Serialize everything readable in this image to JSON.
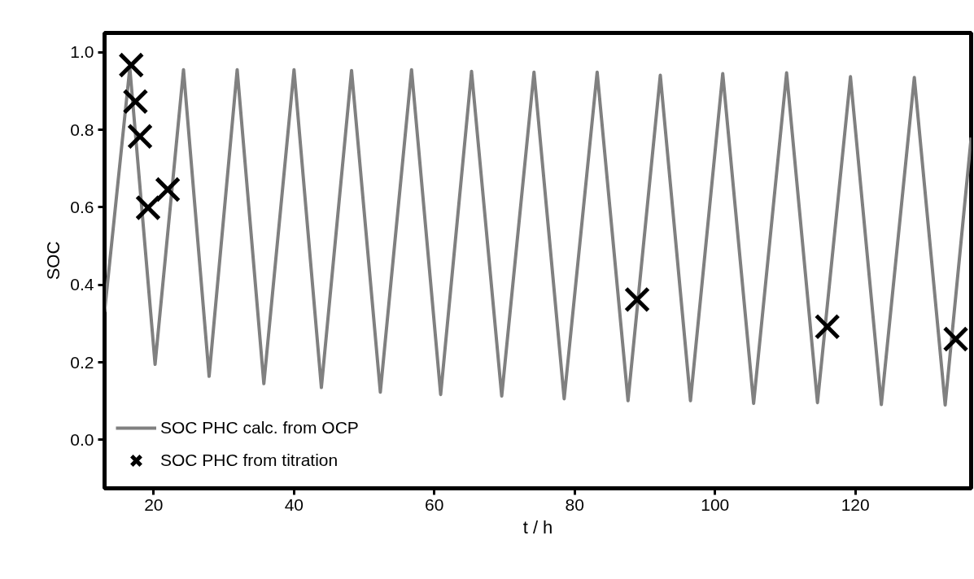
{
  "chart_data": {
    "type": "line",
    "xlabel": "t / h",
    "ylabel": "SOC",
    "xlim": [
      13,
      136.5
    ],
    "ylim": [
      -0.125,
      1.05
    ],
    "xticks": [
      20,
      40,
      60,
      80,
      100,
      120
    ],
    "yticks": [
      {
        "value": 0,
        "label": "0.0"
      },
      {
        "value": 0.2,
        "label": "0.2"
      },
      {
        "value": 0.4,
        "label": "0.4"
      },
      {
        "value": 0.6,
        "label": "0.6"
      },
      {
        "value": 0.8,
        "label": "0.8"
      },
      {
        "value": 1,
        "label": "1.0"
      }
    ],
    "grid": false,
    "legend": "bottom left",
    "series": [
      {
        "name": "SOC PHC calc. from OCP",
        "color": "#808080",
        "marker": "none",
        "line_style": "solid",
        "x": [
          13,
          16.6,
          20.2,
          24.25,
          27.9,
          31.9,
          35.7,
          40.0,
          43.9,
          48.2,
          52.3,
          56.75,
          60.9,
          65.3,
          69.6,
          74.2,
          78.5,
          83.2,
          87.6,
          92.2,
          96.5,
          101.1,
          105.5,
          110.2,
          114.6,
          119.3,
          123.7,
          128.4,
          132.8,
          136.5
        ],
        "values": [
          0.33,
          0.96,
          0.195,
          0.955,
          0.164,
          0.955,
          0.145,
          0.955,
          0.135,
          0.953,
          0.123,
          0.955,
          0.117,
          0.951,
          0.113,
          0.949,
          0.106,
          0.949,
          0.101,
          0.941,
          0.101,
          0.945,
          0.094,
          0.947,
          0.096,
          0.937,
          0.091,
          0.935,
          0.09,
          0.78
        ]
      },
      {
        "name": "SOC PHC from titration",
        "type": "scatter",
        "color": "#000000",
        "marker": "cross",
        "x": [
          16.8,
          17.4,
          18.05,
          19.2,
          22.0,
          88.9,
          116.0,
          134.3
        ],
        "values": [
          0.967,
          0.873,
          0.783,
          0.599,
          0.646,
          0.362,
          0.292,
          0.26
        ]
      }
    ]
  }
}
